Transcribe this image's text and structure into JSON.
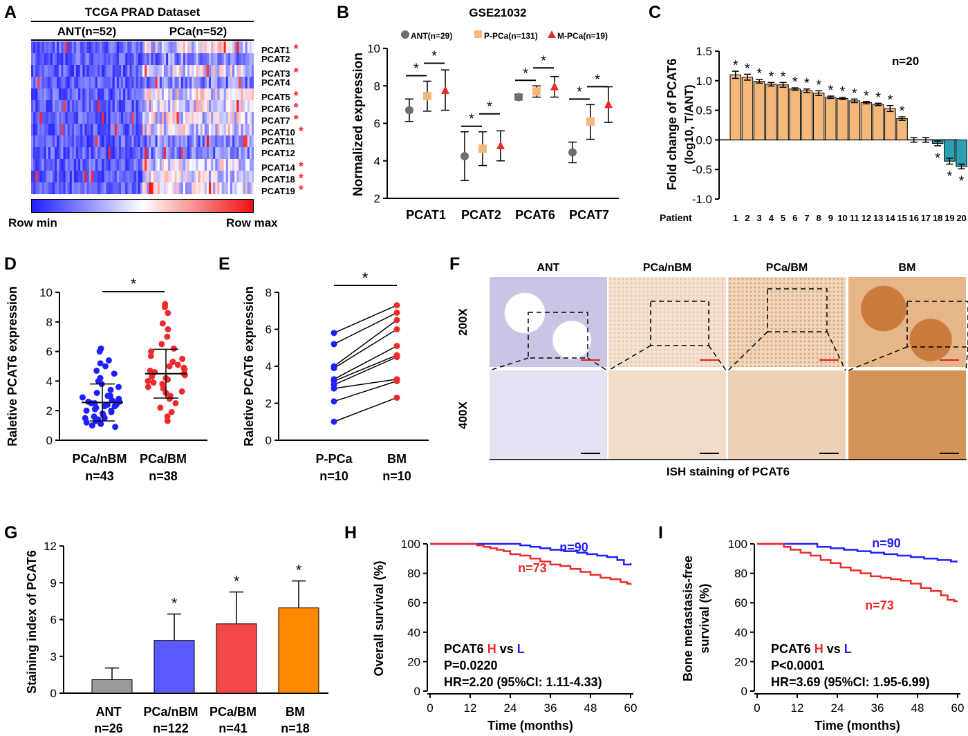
{
  "panels": {
    "A": "A",
    "B": "B",
    "C": "C",
    "D": "D",
    "E": "E",
    "F": "F",
    "G": "G",
    "H": "H",
    "I": "I"
  },
  "star": "*",
  "colors": {
    "blue": "#1f1fff",
    "red": "#ee2a2a",
    "gray": "#6e6e6e",
    "tan": "#f4b87a",
    "teal": "#2aa0b0",
    "orange": "#ff8a00",
    "bluebar": "#5a5aff",
    "redbar": "#f44848",
    "graybar": "#9a9a9a"
  },
  "panelA": {
    "title": "TCGA PRAD Dataset",
    "group1": "ANT(n=52)",
    "group2": "PCa(n=52)",
    "rows": [
      "PCAT1",
      "PCAT2",
      "PCAT3",
      "PCAT4",
      "PCAT5",
      "PCAT6",
      "PCAT7",
      "PCAT10",
      "PCAT11",
      "PCAT12",
      "PCAT14",
      "PCAT18",
      "PCAT19"
    ],
    "starred": [
      true,
      false,
      true,
      false,
      true,
      true,
      true,
      true,
      false,
      false,
      true,
      true,
      true
    ],
    "legend_min": "Row min",
    "legend_max": "Row max"
  },
  "chart_data": [
    {
      "id": "B",
      "type": "scatter",
      "title": "GSE21032",
      "ylabel": "Normalized expression",
      "ylim": [
        2,
        10
      ],
      "yticks": [
        2,
        4,
        6,
        8,
        10
      ],
      "categories": [
        "PCAT1",
        "PCAT2",
        "PCAT6",
        "PCAT7"
      ],
      "series": [
        {
          "name": "ANT(n=29)",
          "mean": [
            6.7,
            4.25,
            7.4,
            4.45
          ],
          "lower": [
            6.1,
            2.95,
            7.25,
            3.9
          ],
          "upper": [
            7.3,
            5.55,
            7.55,
            5.0
          ]
        },
        {
          "name": "P-PCa(n=131)",
          "mean": [
            7.45,
            4.65,
            7.7,
            6.1
          ],
          "lower": [
            6.65,
            3.75,
            7.4,
            5.15
          ],
          "upper": [
            8.25,
            5.55,
            8.0,
            7.0
          ]
        },
        {
          "name": "M-PCa(n=19)",
          "mean": [
            7.75,
            4.8,
            7.95,
            7.0
          ],
          "lower": [
            6.7,
            4.0,
            7.4,
            6.05
          ],
          "upper": [
            8.85,
            5.6,
            8.5,
            7.95
          ]
        }
      ]
    },
    {
      "id": "C",
      "type": "bar",
      "ylabel_line1": "Fold change of PCAT6",
      "ylabel_line2": "(log10, T/ANT)",
      "xlabel": "Patient",
      "annotation": "n=20",
      "ylim": [
        -1.0,
        1.5
      ],
      "yticks": [
        "1.5",
        "1.0",
        "0.5",
        "0.0",
        "-0.5",
        "-1.0"
      ],
      "categories": [
        "1",
        "2",
        "3",
        "4",
        "5",
        "6",
        "7",
        "8",
        "9",
        "10",
        "11",
        "12",
        "13",
        "14",
        "15",
        "16",
        "17",
        "18",
        "19",
        "20"
      ],
      "values": [
        1.1,
        1.06,
        0.99,
        0.94,
        0.93,
        0.86,
        0.83,
        0.79,
        0.72,
        0.7,
        0.66,
        0.63,
        0.6,
        0.53,
        0.36,
        0.0,
        0.0,
        -0.06,
        -0.36,
        -0.45
      ],
      "errors": [
        0.06,
        0.05,
        0.03,
        0.03,
        0.04,
        0.02,
        0.03,
        0.04,
        0.02,
        0.02,
        0.03,
        0.02,
        0.02,
        0.05,
        0.03,
        0.04,
        0.04,
        0.04,
        0.05,
        0.04
      ],
      "significant": [
        true,
        true,
        true,
        true,
        true,
        true,
        true,
        true,
        true,
        true,
        true,
        true,
        true,
        true,
        true,
        false,
        false,
        true,
        true,
        true
      ]
    },
    {
      "id": "D",
      "type": "scatter",
      "ylabel": "Raletive PCAT6 expression",
      "ylim": [
        0,
        10
      ],
      "yticks": [
        0,
        2,
        4,
        6,
        8,
        10
      ],
      "categories": [
        "PCa/nBM",
        "PCa/BM"
      ],
      "ns": [
        "n=43",
        "n=38"
      ],
      "series": [
        {
          "name": "PCa/nBM",
          "mean": 2.55,
          "sd": 1.25,
          "values": [
            6.2,
            6.0,
            5.4,
            5.2,
            5.0,
            4.7,
            4.5,
            4.2,
            4.0,
            3.8,
            3.6,
            3.4,
            3.2,
            3.0,
            3.0,
            2.9,
            2.8,
            2.7,
            2.6,
            2.6,
            2.5,
            2.5,
            2.4,
            2.4,
            2.3,
            2.2,
            2.1,
            2.0,
            2.0,
            1.9,
            1.8,
            1.7,
            1.6,
            1.5,
            1.5,
            1.4,
            1.3,
            1.2,
            1.1,
            1.0,
            0.9,
            2.6,
            2.3
          ]
        },
        {
          "name": "PCa/BM",
          "mean": 4.5,
          "sd": 1.65,
          "values": [
            9.2,
            9.0,
            8.6,
            7.9,
            7.5,
            7.0,
            6.5,
            6.2,
            6.0,
            5.7,
            5.5,
            5.3,
            5.1,
            5.0,
            4.9,
            4.8,
            4.7,
            4.6,
            4.5,
            4.5,
            4.4,
            4.3,
            4.2,
            4.1,
            4.0,
            3.9,
            3.8,
            3.6,
            3.5,
            3.3,
            3.2,
            3.0,
            2.8,
            2.5,
            2.2,
            1.9,
            1.6,
            1.3
          ]
        }
      ]
    },
    {
      "id": "E",
      "type": "line",
      "ylabel": "Raletive PCAT6 expression",
      "ylim": [
        0,
        8
      ],
      "yticks": [
        0,
        2,
        4,
        6,
        8
      ],
      "categories": [
        "P-PCa",
        "BM"
      ],
      "ns": [
        "n=10",
        "n=10"
      ],
      "pairs": [
        [
          5.8,
          7.3
        ],
        [
          5.2,
          6.9
        ],
        [
          4.0,
          6.5
        ],
        [
          3.9,
          6.0
        ],
        [
          3.3,
          5.1
        ],
        [
          3.2,
          4.6
        ],
        [
          3.0,
          4.5
        ],
        [
          2.8,
          3.3
        ],
        [
          2.1,
          3.2
        ],
        [
          1.0,
          2.3
        ]
      ]
    },
    {
      "id": "G",
      "type": "bar",
      "ylabel": "Staining index of PCAT6",
      "ylim": [
        0,
        12
      ],
      "yticks": [
        0,
        3,
        6,
        9,
        12
      ],
      "categories": [
        "ANT",
        "PCa/nBM",
        "PCa/BM",
        "BM"
      ],
      "ns": [
        "n=26",
        "n=122",
        "n=41",
        "n=18"
      ],
      "values": [
        1.1,
        4.3,
        5.65,
        6.95
      ],
      "errors": [
        0.95,
        2.15,
        2.6,
        2.2
      ],
      "significant": [
        false,
        true,
        true,
        true
      ]
    },
    {
      "id": "H",
      "type": "line",
      "ylabel": "Overall survival (%)",
      "xlabel": "Time (months)",
      "xlim": [
        0,
        60
      ],
      "ylim": [
        0,
        100
      ],
      "xticks": [
        0,
        12,
        24,
        36,
        48,
        60
      ],
      "yticks": [
        0,
        20,
        40,
        60,
        80,
        100
      ],
      "series": [
        {
          "name": "n=90",
          "x": [
            0,
            24,
            27,
            30,
            33,
            36,
            40,
            44,
            47,
            50,
            53,
            56,
            58,
            60
          ],
          "y": [
            100,
            100,
            99,
            98,
            97,
            96,
            95,
            94,
            93,
            92,
            91,
            89,
            86,
            87
          ]
        },
        {
          "name": "n=73",
          "x": [
            0,
            12,
            14,
            16,
            18,
            20,
            22,
            24,
            27,
            30,
            33,
            36,
            39,
            42,
            45,
            48,
            51,
            54,
            57,
            59,
            60
          ],
          "y": [
            100,
            100,
            99,
            98,
            97,
            96,
            95,
            93,
            92,
            90,
            88,
            86,
            85,
            83,
            81,
            79,
            77,
            76,
            74,
            73,
            72
          ]
        }
      ],
      "stats_gene": "PCAT6",
      "stats_h": "H",
      "stats_vs": "vs",
      "stats_l": "L",
      "p": "P=0.0220",
      "hr": "HR=2.20 (95%CI: 1.11-4.33)"
    },
    {
      "id": "I",
      "type": "line",
      "ylabel_line1": "Bone metastasis-free",
      "ylabel_line2": "survival (%)",
      "xlabel": "Time (months)",
      "xlim": [
        0,
        60
      ],
      "ylim": [
        0,
        100
      ],
      "xticks": [
        0,
        12,
        24,
        36,
        48,
        60
      ],
      "yticks": [
        0,
        20,
        40,
        60,
        80,
        100
      ],
      "series": [
        {
          "name": "n=90",
          "x": [
            0,
            14,
            18,
            22,
            26,
            30,
            34,
            38,
            42,
            46,
            50,
            54,
            58,
            60
          ],
          "y": [
            100,
            100,
            98,
            97,
            96,
            95,
            94,
            93,
            92,
            91,
            90,
            89,
            88,
            88
          ]
        },
        {
          "name": "n=73",
          "x": [
            0,
            6,
            8,
            10,
            13,
            16,
            19,
            22,
            25,
            28,
            31,
            34,
            37,
            40,
            43,
            46,
            49,
            52,
            55,
            57,
            59,
            60
          ],
          "y": [
            100,
            100,
            98,
            96,
            94,
            92,
            89,
            87,
            84,
            82,
            80,
            78,
            77,
            76,
            75,
            73,
            70,
            68,
            65,
            62,
            61,
            61
          ]
        }
      ],
      "stats_gene": "PCAT6",
      "stats_h": "H",
      "stats_vs": "vs",
      "stats_l": "L",
      "p": "P<0.0001",
      "hr": "HR=3.69 (95%CI: 1.95-6.99)"
    }
  ],
  "panelF": {
    "columns": [
      "ANT",
      "PCa/nBM",
      "PCa/BM",
      "BM"
    ],
    "rows": [
      "200X",
      "400X"
    ],
    "caption": "ISH staining of PCAT6"
  }
}
